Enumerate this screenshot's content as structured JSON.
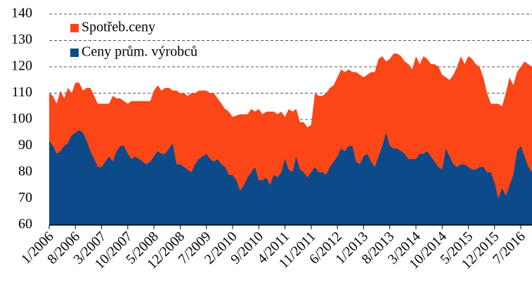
{
  "chart_data": {
    "type": "area",
    "categories": [
      "1/2006",
      null,
      null,
      null,
      null,
      null,
      null,
      "8/2006",
      null,
      null,
      null,
      null,
      null,
      null,
      "3/2007",
      null,
      null,
      null,
      null,
      null,
      null,
      "10/2007",
      null,
      null,
      null,
      null,
      null,
      null,
      "5/2008",
      null,
      null,
      null,
      null,
      null,
      null,
      "12/2008",
      null,
      null,
      null,
      null,
      null,
      null,
      "7/2009",
      null,
      null,
      null,
      null,
      null,
      null,
      "2/2010",
      null,
      null,
      null,
      null,
      null,
      null,
      "9/2010",
      null,
      null,
      null,
      null,
      null,
      null,
      "4/2011",
      null,
      null,
      null,
      null,
      null,
      null,
      "11/2011",
      null,
      null,
      null,
      null,
      null,
      null,
      "6/2012",
      null,
      null,
      null,
      null,
      null,
      null,
      "1/2013",
      null,
      null,
      null,
      null,
      null,
      null,
      "8/2013",
      null,
      null,
      null,
      null,
      null,
      null,
      "3/2014",
      null,
      null,
      null,
      null,
      null,
      null,
      "10/2014",
      null,
      null,
      null,
      null,
      null,
      null,
      "5/2015",
      null,
      null,
      null,
      null,
      null,
      null,
      "12/2015",
      null,
      null,
      null,
      null,
      null,
      null,
      "7/2016",
      null,
      null,
      null
    ],
    "series": [
      {
        "name": "Spotřeb.ceny",
        "color": "#fb4617",
        "values": [
          110,
          109,
          106,
          111,
          108,
          112,
          110,
          114,
          114,
          111,
          112,
          112,
          109,
          106,
          106,
          106,
          106,
          109,
          108,
          108,
          107,
          106,
          107,
          107,
          107,
          107,
          107,
          107,
          111,
          113,
          111,
          112,
          112,
          111,
          111,
          110,
          110,
          109,
          110,
          110,
          111,
          111,
          111,
          110,
          110,
          108,
          106,
          104,
          103,
          101,
          101.5,
          102,
          102,
          102,
          104,
          103,
          104,
          102,
          103,
          103,
          103,
          102,
          103,
          101,
          104,
          103,
          104,
          99,
          99,
          97,
          98,
          110,
          109,
          109,
          110,
          112,
          113,
          116,
          119,
          118,
          119,
          118,
          118,
          117,
          116,
          117,
          118,
          118,
          123,
          124,
          122,
          123,
          125,
          125,
          124,
          122,
          121,
          119,
          124,
          121,
          124,
          123,
          121,
          121,
          120,
          117,
          116,
          115,
          117,
          120,
          124,
          121,
          124,
          123,
          121,
          120,
          116,
          110,
          106,
          106,
          106,
          105,
          110,
          116,
          113,
          118,
          120,
          122,
          121,
          120
        ]
      },
      {
        "name": "Ceny prům. výrobců",
        "color": "#0d4a8a",
        "values": [
          92,
          90,
          87,
          88,
          90,
          91,
          94,
          95,
          96,
          95,
          92,
          88,
          85,
          82,
          82,
          84,
          86,
          84,
          88,
          90,
          90,
          87,
          85,
          86,
          85,
          84,
          83,
          84,
          86,
          88,
          87,
          87,
          89,
          91,
          83,
          83,
          82,
          81,
          80,
          83,
          85,
          86,
          87,
          85,
          84,
          85,
          83,
          82,
          79,
          79,
          77,
          73,
          75,
          78,
          80,
          82,
          77,
          77,
          78,
          75,
          79,
          78,
          80,
          85,
          81,
          80,
          86,
          81,
          80,
          78,
          80,
          82,
          80,
          80,
          79,
          82,
          84,
          86,
          89,
          88,
          90,
          90,
          84,
          83,
          86,
          87,
          84,
          82,
          86,
          90,
          95,
          90,
          89,
          89,
          88,
          87,
          85,
          85,
          85,
          87,
          87,
          88,
          86,
          84,
          82,
          81,
          89,
          86,
          83,
          82,
          83,
          83,
          82,
          81,
          81,
          82,
          82,
          80,
          80,
          76,
          70,
          74,
          71,
          75,
          79,
          88,
          90,
          86,
          82,
          80
        ]
      }
    ],
    "ylim": [
      60,
      140
    ],
    "yticks": [
      60,
      70,
      80,
      90,
      100,
      110,
      120,
      130,
      140
    ],
    "grid": true,
    "legend": "upper left"
  }
}
